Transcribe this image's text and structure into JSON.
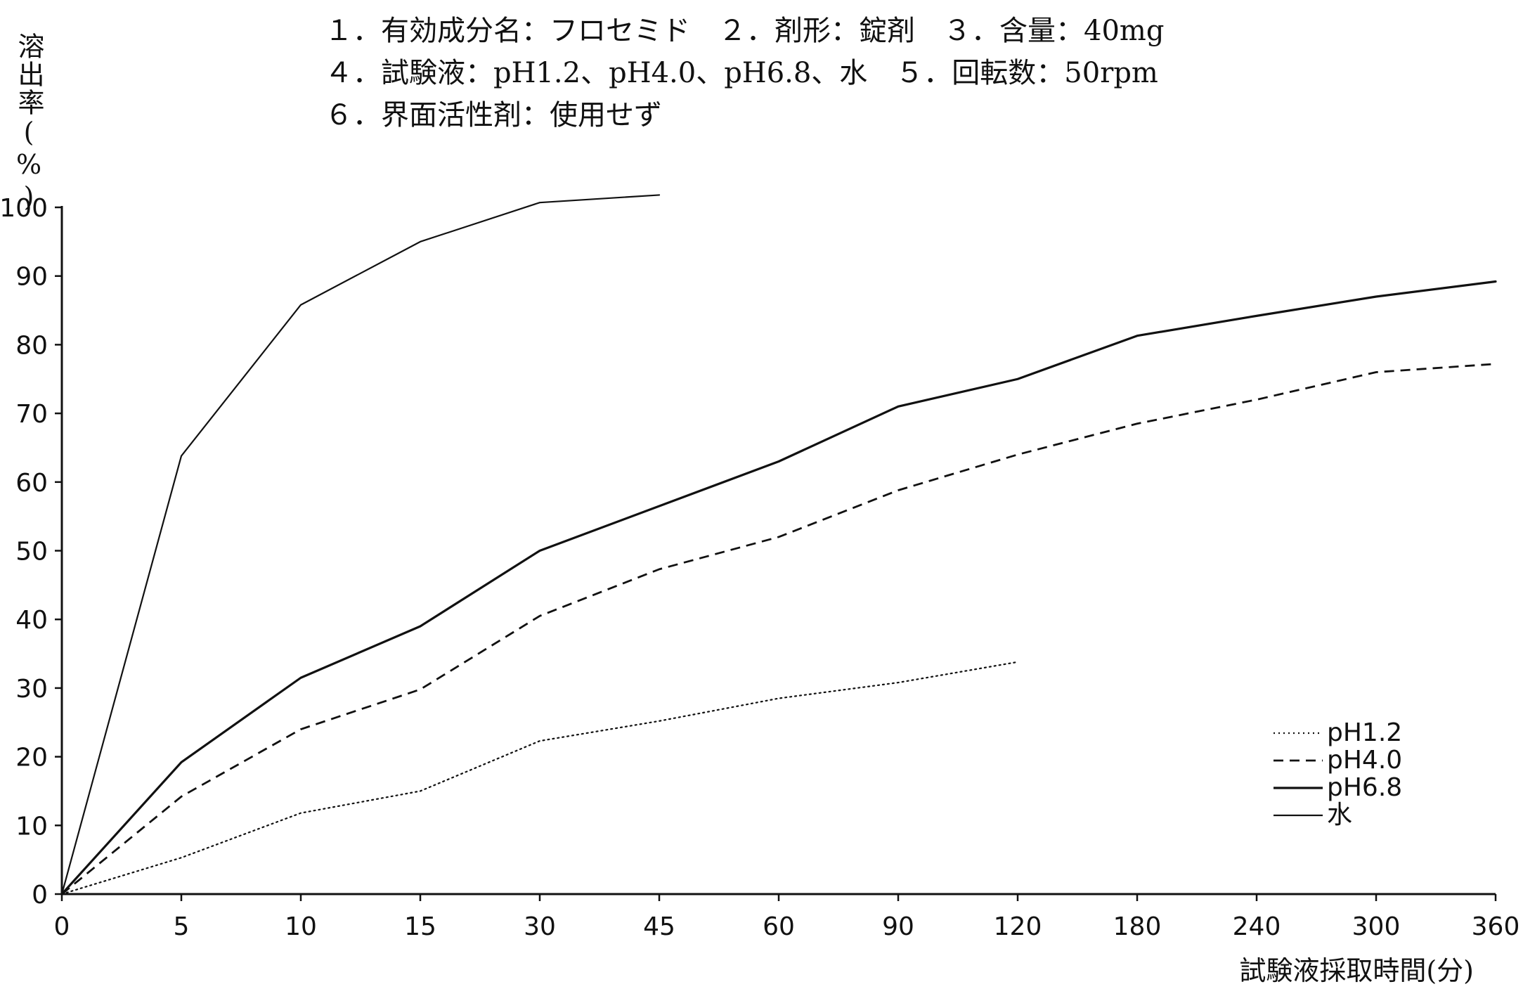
{
  "header": {
    "lines": [
      "１．有効成分名：フロセミド　２．剤形：錠剤　３．含量：40mg",
      "４．試験液：pH1.2、pH4.0、pH6.8、水　５．回転数：50rpm",
      "６．界面活性剤：使用せず"
    ]
  },
  "chart_data": {
    "type": "line",
    "ylabel": "溶出率(%)",
    "xlabel": "試験液採取時間(分)",
    "categories": [
      "0",
      "5",
      "10",
      "15",
      "30",
      "45",
      "60",
      "90",
      "120",
      "180",
      "240",
      "300",
      "360"
    ],
    "yticks": [
      "0",
      "10",
      "20",
      "30",
      "40",
      "50",
      "60",
      "70",
      "80",
      "90",
      "100"
    ],
    "ylim": [
      0,
      100
    ],
    "x_scale": "categorical (equally spaced sampling times)",
    "grid": false,
    "legend_position": "bottom-right",
    "series": [
      {
        "name": "pH1.2",
        "style": "dotted",
        "color": "#111111",
        "values": [
          0,
          5.3,
          11.8,
          15,
          22.3,
          25.2,
          28.5,
          30.8,
          33.8,
          null,
          null,
          null,
          null
        ]
      },
      {
        "name": "pH4.0",
        "style": "dashed",
        "color": "#111111",
        "values": [
          0,
          14.2,
          24,
          29.8,
          40.5,
          47.3,
          52,
          58.8,
          64,
          68.5,
          72,
          76,
          77.2
        ]
      },
      {
        "name": "pH6.8",
        "style": "solid",
        "color": "#111111",
        "values": [
          0,
          19.2,
          31.5,
          39,
          50,
          56.5,
          63,
          71,
          75,
          81.3,
          84.2,
          87,
          89.2
        ]
      },
      {
        "name": "水",
        "style": "solid-thin",
        "color": "#111111",
        "values": [
          0,
          63.8,
          85.8,
          95,
          100.7,
          101.8,
          null,
          null,
          null,
          null,
          null,
          null,
          null
        ]
      }
    ]
  }
}
